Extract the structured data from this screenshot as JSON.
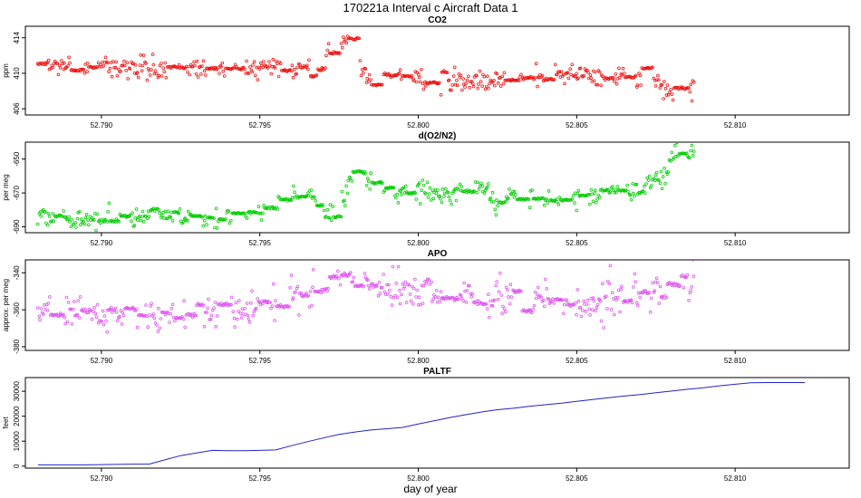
{
  "figure": {
    "title": "170221a   Interval c Aircraft Data 1",
    "xlabel": "day of year"
  },
  "chart_data": [
    {
      "type": "scatter",
      "title": "CO2",
      "ylabel": "ppm",
      "color": "#ee1111",
      "xlim": [
        52.7876,
        52.8136
      ],
      "ylim": [
        405.3,
        415.3
      ],
      "xticks": [
        "52.790",
        "52.795",
        "52.800",
        "52.805",
        "52.810"
      ],
      "yticks": [
        "406",
        "410",
        "414"
      ],
      "x_range": [
        52.788,
        52.8087
      ],
      "profile": [
        [
          52.788,
          410.8
        ],
        [
          52.7895,
          411.0
        ],
        [
          52.791,
          410.6
        ],
        [
          52.7925,
          410.7
        ],
        [
          52.794,
          410.5
        ],
        [
          52.7955,
          410.9
        ],
        [
          52.797,
          410.5
        ],
        [
          52.7973,
          413.0
        ],
        [
          52.7977,
          413.8
        ],
        [
          52.798,
          411.5
        ],
        [
          52.7985,
          409.0
        ],
        [
          52.799,
          410.2
        ],
        [
          52.8,
          409.5
        ],
        [
          52.801,
          409.4
        ],
        [
          52.802,
          409.1
        ],
        [
          52.803,
          409.8
        ],
        [
          52.804,
          409.7
        ],
        [
          52.805,
          409.9
        ],
        [
          52.806,
          409.6
        ],
        [
          52.807,
          409.7
        ],
        [
          52.8078,
          408.5
        ],
        [
          52.808,
          407.5
        ],
        [
          52.8087,
          408.2
        ]
      ],
      "noise": 0.6,
      "marker": "open-circle"
    },
    {
      "type": "scatter",
      "title": "d(O2/N2)",
      "ylabel": "per meg",
      "color": "#00cc00",
      "xlim": [
        52.7876,
        52.8136
      ],
      "ylim": [
        -693.5,
        -640
      ],
      "xticks": [
        "52.790",
        "52.795",
        "52.800",
        "52.805",
        "52.810"
      ],
      "yticks": [
        "-690",
        "-670",
        "-650"
      ],
      "x_range": [
        52.788,
        52.8087
      ],
      "profile": [
        [
          52.788,
          -684
        ],
        [
          52.7895,
          -686
        ],
        [
          52.791,
          -684
        ],
        [
          52.7925,
          -685
        ],
        [
          52.794,
          -686
        ],
        [
          52.7955,
          -676
        ],
        [
          52.7965,
          -670
        ],
        [
          52.797,
          -680
        ],
        [
          52.7975,
          -684
        ],
        [
          52.798,
          -654
        ],
        [
          52.7985,
          -662
        ],
        [
          52.799,
          -670
        ],
        [
          52.8,
          -669
        ],
        [
          52.801,
          -670
        ],
        [
          52.802,
          -666
        ],
        [
          52.8025,
          -678
        ],
        [
          52.803,
          -670
        ],
        [
          52.804,
          -673
        ],
        [
          52.805,
          -672
        ],
        [
          52.806,
          -670
        ],
        [
          52.807,
          -668
        ],
        [
          52.8078,
          -660
        ],
        [
          52.8081,
          -645
        ],
        [
          52.8087,
          -647
        ]
      ],
      "noise": 3.0,
      "marker": "open-circle"
    },
    {
      "type": "scatter",
      "title": "APO",
      "ylabel": "approx. per meg",
      "color": "#dd55ee",
      "xlim": [
        52.7876,
        52.8136
      ],
      "ylim": [
        -382,
        -333
      ],
      "xticks": [
        "52.790",
        "52.795",
        "52.800",
        "52.805",
        "52.810"
      ],
      "yticks": [
        "-380",
        "-360",
        "-340"
      ],
      "x_range": [
        52.788,
        52.8087
      ],
      "profile": [
        [
          52.788,
          -359
        ],
        [
          52.7895,
          -362
        ],
        [
          52.791,
          -364
        ],
        [
          52.7925,
          -362
        ],
        [
          52.794,
          -361
        ],
        [
          52.7955,
          -358
        ],
        [
          52.7965,
          -351
        ],
        [
          52.7975,
          -345
        ],
        [
          52.7985,
          -347
        ],
        [
          52.8,
          -352
        ],
        [
          52.801,
          -353
        ],
        [
          52.802,
          -354
        ],
        [
          52.803,
          -355
        ],
        [
          52.804,
          -356
        ],
        [
          52.805,
          -357
        ],
        [
          52.806,
          -355
        ],
        [
          52.807,
          -353
        ],
        [
          52.8078,
          -350
        ],
        [
          52.8087,
          -342
        ]
      ],
      "noise": 5.0,
      "marker": "open-circle"
    },
    {
      "type": "line",
      "title": "PALTF",
      "ylabel": "feet",
      "color": "#2222cc",
      "xlim": [
        52.7876,
        52.8136
      ],
      "ylim": [
        -800,
        35500
      ],
      "xticks": [
        "52.790",
        "52.795",
        "52.800",
        "52.805",
        "52.810"
      ],
      "yticks": [
        "0",
        "10000",
        "20000",
        "30000"
      ],
      "x": [
        52.788,
        52.7895,
        52.791,
        52.7915,
        52.792,
        52.7925,
        52.793,
        52.7935,
        52.794,
        52.7945,
        52.795,
        52.7955,
        52.796,
        52.7965,
        52.797,
        52.7975,
        52.798,
        52.7985,
        52.799,
        52.7995,
        52.8,
        52.8005,
        52.801,
        52.8015,
        52.802,
        52.8025,
        52.803,
        52.8035,
        52.804,
        52.8045,
        52.805,
        52.8055,
        52.806,
        52.8065,
        52.807,
        52.8075,
        52.808,
        52.8085,
        52.809,
        52.8095,
        52.81,
        52.8105,
        52.811,
        52.8115,
        52.8122
      ],
      "y": [
        500,
        500,
        800,
        800,
        2500,
        4200,
        5300,
        6300,
        6200,
        6200,
        6300,
        6500,
        8200,
        9800,
        11300,
        12700,
        13700,
        14500,
        15000,
        15500,
        16900,
        18200,
        19500,
        20600,
        21700,
        22600,
        23200,
        24000,
        24600,
        25200,
        26000,
        26700,
        27400,
        28100,
        28700,
        29400,
        30100,
        30800,
        31400,
        32200,
        32800,
        33400,
        33500,
        33500,
        33500
      ]
    }
  ]
}
